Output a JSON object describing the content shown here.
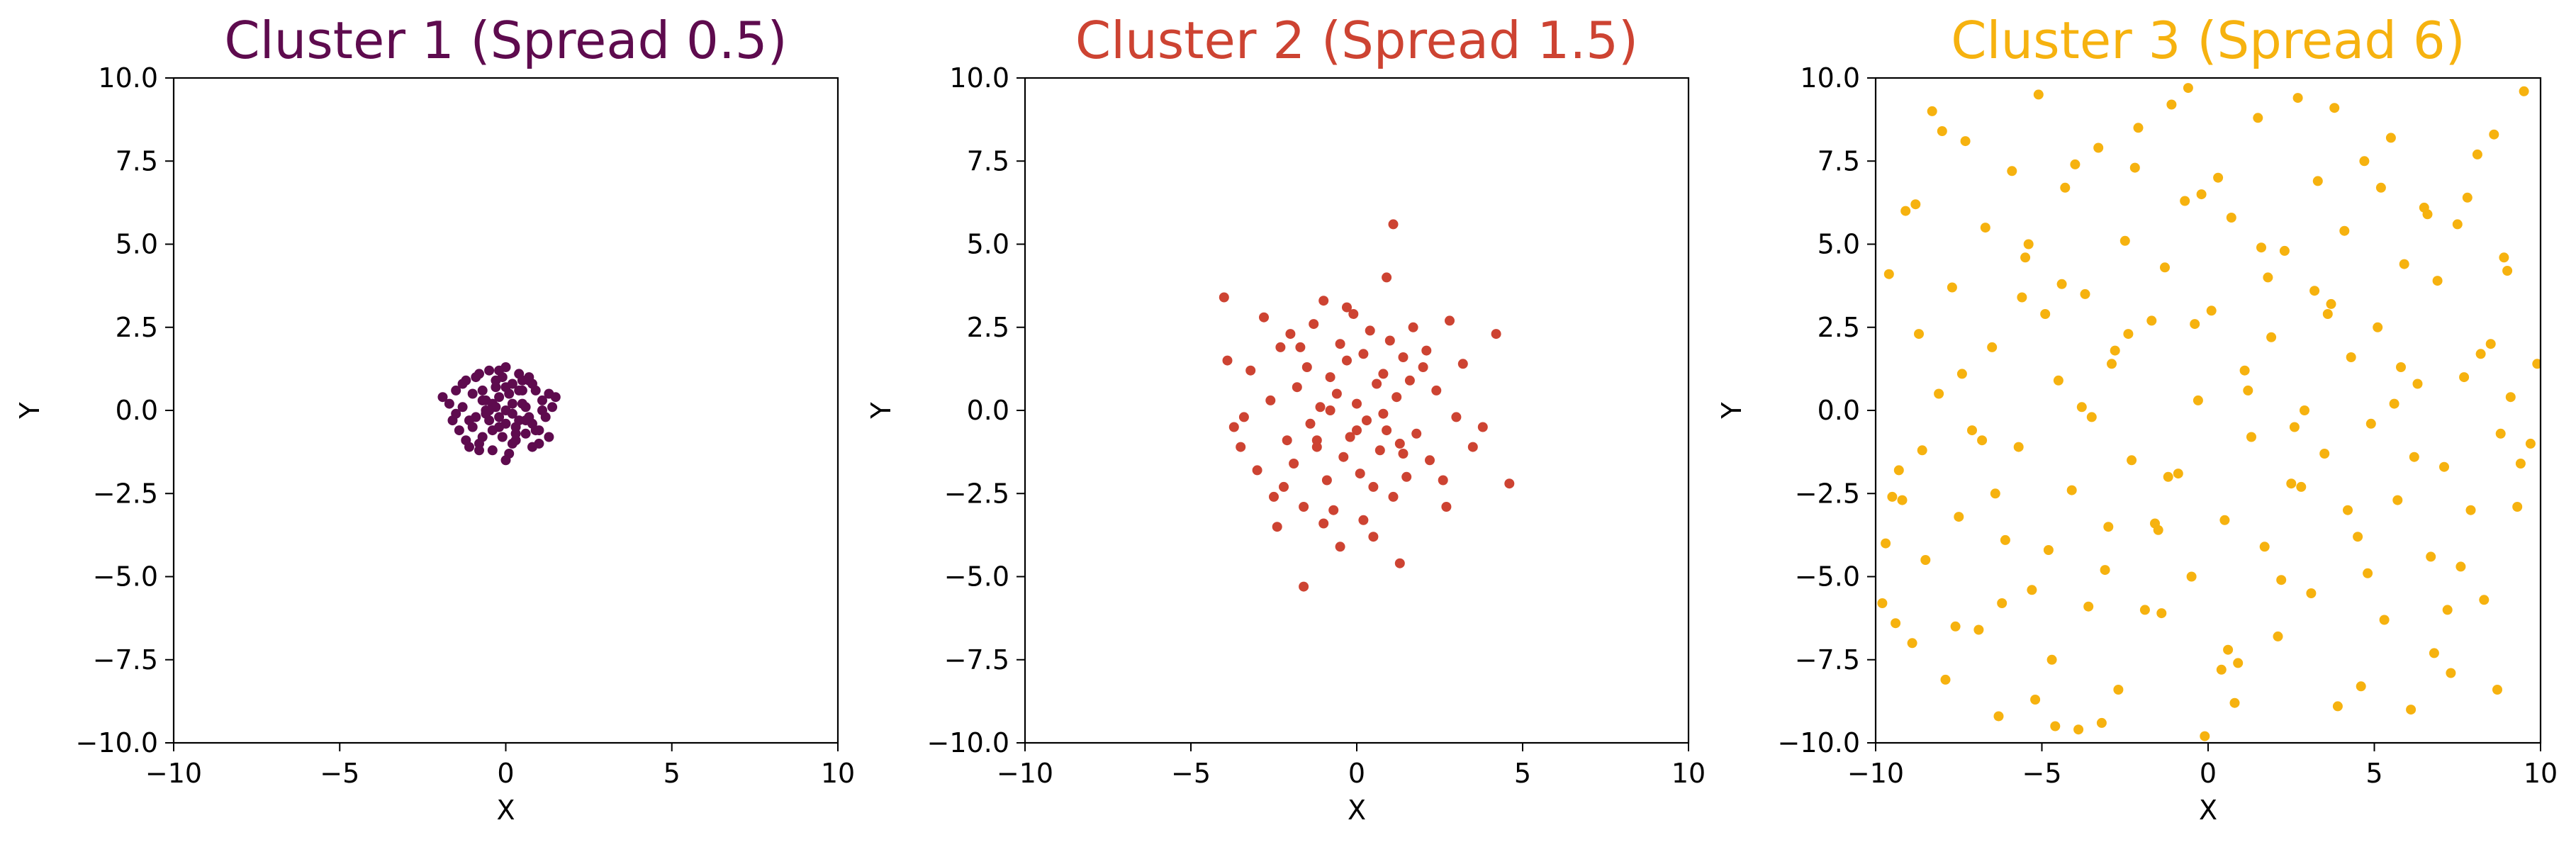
{
  "figure": {
    "background": "#ffffff"
  },
  "chart_data": [
    {
      "type": "scatter",
      "title": "Cluster 1 (Spread 0.5)",
      "xlabel": "X",
      "ylabel": "Y",
      "xlim": [
        -10,
        10
      ],
      "ylim": [
        -10,
        10
      ],
      "xticks": [
        -10,
        -5,
        0,
        5,
        10
      ],
      "xtick_labels": [
        "−10",
        "−5",
        "0",
        "5",
        "10"
      ],
      "yticks": [
        10.0,
        7.5,
        5.0,
        2.5,
        0.0,
        -2.5,
        -5.0,
        -7.5,
        -10.0
      ],
      "ytick_labels": [
        "10.0",
        "7.5",
        "5.0",
        "2.5",
        "0.0",
        "−2.5",
        "−5.0",
        "−7.5",
        "−10.0"
      ],
      "grid": false,
      "color": "#5e0b4e",
      "series": [
        {
          "x": [
            -1.9,
            -1.7,
            -1.6,
            -1.5,
            -1.4,
            -1.3,
            -1.2,
            -1.1,
            -1.0,
            -0.9,
            -0.8,
            -0.7,
            -0.6,
            -0.5,
            -0.4,
            -0.3,
            -0.2,
            -0.1,
            0.0,
            0.1,
            0.2,
            0.3,
            0.4,
            0.5,
            0.6,
            0.7,
            0.8,
            0.9,
            1.0,
            1.1,
            1.2,
            1.3,
            1.4,
            1.5,
            -1.2,
            -1.0,
            -0.8,
            -0.6,
            -0.4,
            -0.2,
            0.0,
            0.2,
            0.4,
            0.6,
            0.8,
            1.0,
            -0.9,
            -0.7,
            -0.5,
            -0.3,
            -0.1,
            0.1,
            0.3,
            0.5,
            0.7,
            0.9,
            -0.6,
            -0.4,
            -0.2,
            0.0,
            0.2,
            0.4,
            0.6,
            -0.3,
            0.0,
            0.3,
            -1.5,
            -1.3,
            -1.1,
            1.1,
            1.3,
            -0.8,
            0.8,
            -0.5,
            0.5,
            0.0,
            -0.2,
            0.2,
            -0.7,
            0.7
          ],
          "y": [
            0.4,
            0.2,
            -0.3,
            0.6,
            -0.6,
            0.1,
            0.9,
            -1.1,
            0.5,
            -0.2,
            1.1,
            -0.8,
            0.3,
            1.2,
            -1.2,
            0.7,
            -0.5,
            1.0,
            1.3,
            -1.3,
            0.8,
            -0.9,
            1.1,
            0.2,
            -0.7,
            0.9,
            -0.4,
            0.6,
            -1.0,
            0.3,
            -0.2,
            0.5,
            0.1,
            0.4,
            -0.9,
            -0.5,
            -1.0,
            0.0,
            -0.6,
            0.4,
            -0.4,
            -0.1,
            0.6,
            0.1,
            0.8,
            -0.6,
            1.0,
            0.6,
            -0.3,
            0.9,
            -0.8,
            0.5,
            -0.5,
            0.9,
            -0.2,
            -0.6,
            -0.1,
            0.2,
            -0.2,
            0.0,
            0.2,
            -0.3,
            -0.3,
            0.1,
            -1.5,
            -0.7,
            -0.1,
            0.8,
            -0.3,
            0.0,
            -0.8,
            -1.2,
            -1.1,
            0.0,
            0.6,
            0.7,
            1.2,
            -1.0,
            0.3,
            1.0
          ]
        }
      ]
    },
    {
      "type": "scatter",
      "title": "Cluster 2 (Spread 1.5)",
      "xlabel": "X",
      "ylabel": "Y",
      "xlim": [
        -10,
        10
      ],
      "ylim": [
        -10,
        10
      ],
      "xticks": [
        -10,
        -5,
        0,
        5,
        10
      ],
      "xtick_labels": [
        "−10",
        "−5",
        "0",
        "5",
        "10"
      ],
      "yticks": [
        10.0,
        7.5,
        5.0,
        2.5,
        0.0,
        -2.5,
        -5.0,
        -7.5,
        -10.0
      ],
      "ytick_labels": [
        "10.0",
        "7.5",
        "5.0",
        "2.5",
        "0.0",
        "−2.5",
        "−5.0",
        "−7.5",
        "−10.0"
      ],
      "grid": false,
      "color": "#cd4332",
      "series": [
        {
          "x": [
            -4.0,
            -3.9,
            -3.7,
            -3.5,
            -3.4,
            -3.2,
            -3.0,
            -2.8,
            -2.6,
            -2.5,
            -2.3,
            -2.1,
            -2.0,
            -1.9,
            -1.8,
            -1.6,
            -1.5,
            -1.4,
            -1.3,
            -1.2,
            -1.1,
            -1.0,
            -0.9,
            -0.8,
            -0.7,
            -0.6,
            -0.5,
            -0.4,
            -0.3,
            -0.2,
            -0.1,
            0.0,
            0.1,
            0.2,
            0.3,
            0.4,
            0.5,
            0.6,
            0.7,
            0.8,
            0.9,
            1.0,
            1.1,
            1.2,
            1.3,
            1.4,
            1.5,
            1.6,
            1.8,
            2.0,
            2.2,
            2.4,
            2.6,
            2.8,
            3.0,
            3.2,
            3.5,
            3.8,
            4.2,
            4.6,
            -1.6,
            1.1,
            1.3,
            0.9,
            -0.5,
            -2.4,
            2.7,
            -1.0,
            0.5,
            -0.3,
            1.7,
            -1.7,
            0.2,
            -2.2,
            2.1,
            -0.8,
            0.8,
            -1.2,
            1.4,
            0.0
          ],
          "y": [
            3.4,
            1.5,
            -0.5,
            -1.1,
            -0.2,
            1.2,
            -1.8,
            2.8,
            0.3,
            -2.6,
            1.9,
            -0.9,
            2.3,
            -1.6,
            0.7,
            -2.9,
            1.3,
            -0.4,
            2.6,
            -1.1,
            0.1,
            3.3,
            -2.1,
            1.0,
            -3.0,
            0.5,
            2.0,
            -1.4,
            1.5,
            -0.8,
            2.9,
            0.2,
            -1.9,
            1.7,
            -0.3,
            2.4,
            -2.3,
            0.8,
            -1.2,
            1.1,
            -0.6,
            2.1,
            -2.6,
            0.4,
            -1.0,
            1.6,
            -2.0,
            0.9,
            -0.7,
            1.3,
            -1.5,
            0.6,
            -2.1,
            2.7,
            -0.2,
            1.4,
            -1.1,
            -0.5,
            2.3,
            -2.2,
            -5.3,
            5.6,
            -4.6,
            4.0,
            -4.1,
            -3.5,
            -2.9,
            -3.4,
            -3.8,
            3.1,
            2.5,
            1.9,
            -3.3,
            -2.3,
            1.8,
            0.0,
            -0.1,
            -0.9,
            -1.3,
            -0.6
          ]
        }
      ]
    },
    {
      "type": "scatter",
      "title": "Cluster 3 (Spread 6)",
      "xlabel": "X",
      "ylabel": "Y",
      "xlim": [
        -10,
        10
      ],
      "ylim": [
        -10,
        10
      ],
      "xticks": [
        -10,
        -5,
        0,
        5,
        10
      ],
      "xtick_labels": [
        "−10",
        "−5",
        "0",
        "5",
        "10"
      ],
      "yticks": [
        10.0,
        7.5,
        5.0,
        2.5,
        0.0,
        -2.5,
        -5.0,
        -7.5,
        -10.0
      ],
      "ytick_labels": [
        "10.0",
        "7.5",
        "5.0",
        "2.5",
        "0.0",
        "−2.5",
        "−5.0",
        "−7.5",
        "−10.0"
      ],
      "grid": false,
      "color": "#f6b20f",
      "series": [
        {
          "x": [
            -9.8,
            -9.6,
            -9.5,
            -9.3,
            -9.1,
            -8.9,
            -8.7,
            -8.5,
            -8.3,
            -8.1,
            -7.9,
            -7.7,
            -7.5,
            -7.3,
            -7.1,
            -6.9,
            -6.7,
            -6.5,
            -6.3,
            -6.1,
            -5.9,
            -5.7,
            -5.5,
            -5.3,
            -5.1,
            -4.9,
            -4.7,
            -4.5,
            -4.3,
            -4.1,
            -3.9,
            -3.7,
            -3.5,
            -3.3,
            -3.1,
            -2.9,
            -2.7,
            -2.5,
            -2.3,
            -2.1,
            -1.9,
            -1.7,
            -1.5,
            -1.3,
            -1.1,
            -0.9,
            -0.7,
            -0.5,
            -0.3,
            -0.1,
            0.1,
            0.3,
            0.5,
            0.7,
            0.9,
            1.1,
            1.3,
            1.5,
            1.7,
            1.9,
            2.1,
            2.3,
            2.5,
            2.7,
            2.9,
            3.1,
            3.3,
            3.5,
            3.7,
            3.9,
            4.1,
            4.3,
            4.5,
            4.7,
            4.9,
            5.1,
            5.3,
            5.5,
            5.7,
            5.9,
            6.1,
            6.3,
            6.5,
            6.7,
            6.9,
            7.1,
            7.3,
            7.5,
            7.7,
            7.9,
            8.1,
            8.3,
            8.5,
            8.7,
            8.9,
            9.1,
            9.3,
            9.5,
            9.7,
            9.9,
            -9.7,
            -8.8,
            -7.6,
            -6.4,
            -5.2,
            -4.4,
            -3.6,
            -2.8,
            -1.6,
            -0.6,
            0.6,
            1.6,
            2.6,
            3.6,
            4.6,
            5.6,
            6.6,
            7.6,
            8.6,
            9.4,
            -9.2,
            -8.0,
            -6.8,
            -5.6,
            -4.8,
            -4.0,
            -3.2,
            -2.4,
            -1.2,
            -0.2,
            0.4,
            1.2,
            2.2,
            3.2,
            4.2,
            5.2,
            6.2,
            7.2,
            8.2,
            9.0,
            -9.4,
            -8.6,
            -7.4,
            -6.2,
            -5.4,
            -4.6,
            -3.8,
            -3.0,
            -2.2,
            -1.4,
            -0.4,
            0.8,
            1.8,
            2.8,
            3.8,
            4.8,
            5.8,
            6.8,
            7.8,
            8.8
          ],
          "y": [
            -5.8,
            4.1,
            -2.6,
            -1.8,
            6.0,
            -7.0,
            2.3,
            -4.5,
            9.0,
            0.5,
            -8.1,
            3.7,
            -3.2,
            8.1,
            -0.6,
            -6.6,
            5.5,
            1.9,
            -9.2,
            -3.9,
            7.2,
            -1.1,
            4.6,
            -5.4,
            9.5,
            2.9,
            -7.5,
            0.9,
            6.7,
            -2.4,
            -9.6,
            3.5,
            -0.2,
            7.9,
            -4.8,
            1.4,
            -8.4,
            5.1,
            -1.5,
            8.5,
            -6.0,
            2.7,
            -3.6,
            4.3,
            9.2,
            -1.9,
            6.3,
            -5.0,
            0.3,
            -9.8,
            3.0,
            7.0,
            -3.3,
            5.8,
            -7.6,
            1.2,
            -0.8,
            8.8,
            -4.1,
            2.2,
            -6.8,
            4.8,
            -2.2,
            9.4,
            0.0,
            -5.5,
            6.9,
            -1.3,
            3.2,
            -8.9,
            5.4,
            1.6,
            -3.8,
            7.5,
            -0.4,
            2.5,
            -6.3,
            8.2,
            -2.7,
            4.4,
            -9.0,
            0.8,
            6.1,
            -4.4,
            3.9,
            -1.7,
            -7.9,
            5.6,
            1.0,
            -3.0,
            7.7,
            -5.7,
            2.0,
            -8.4,
            4.6,
            0.4,
            -2.9,
            9.6,
            -1.0,
            1.4,
            -4.0,
            6.2,
            -6.5,
            -2.5,
            -8.7,
            3.8,
            -5.9,
            1.8,
            -3.4,
            9.7,
            -7.2,
            4.9,
            -0.5,
            2.9,
            -8.3,
            0.2,
            5.9,
            -4.7,
            8.3,
            -1.6,
            -2.7,
            8.4,
            -0.9,
            3.4,
            -4.2,
            7.4,
            -9.4,
            2.3,
            -2.0,
            6.5,
            -7.8,
            0.6,
            -5.1,
            3.6,
            -3.0,
            6.7,
            -1.4,
            -6.0,
            1.7,
            4.2,
            -6.4,
            -1.2,
            1.1,
            -5.8,
            5.0,
            -9.5,
            0.1,
            -3.5,
            7.3,
            -6.1,
            2.6,
            -8.8,
            4.0,
            -2.3,
            9.1,
            -4.9,
            1.3,
            -7.3,
            6.4,
            -0.7
          ]
        }
      ]
    }
  ]
}
